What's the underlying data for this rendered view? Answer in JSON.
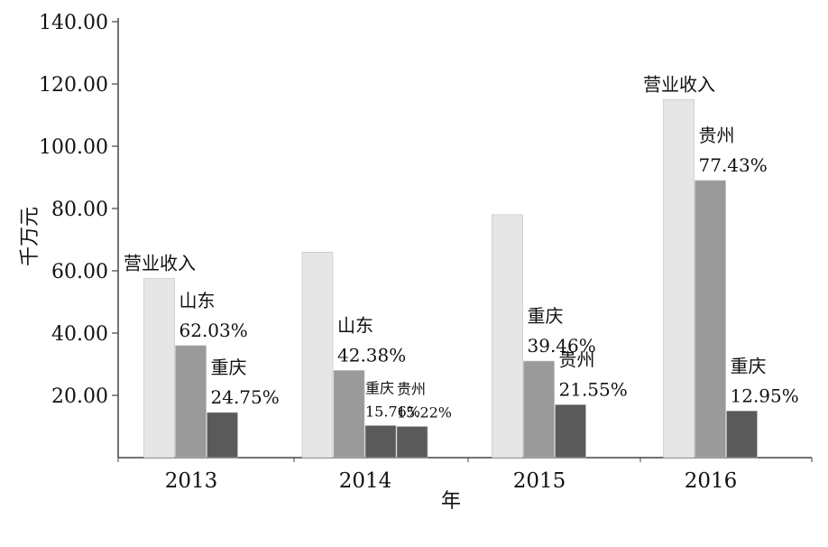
{
  "chart_data": {
    "type": "bar",
    "xlabel": "年",
    "ylabel": "千万元",
    "ylim": [
      0,
      140
    ],
    "yticks": [
      "20.00",
      "40.00",
      "60.00",
      "80.00",
      "100.00",
      "120.00",
      "140.00"
    ],
    "categories": [
      "2013",
      "2014",
      "2015",
      "2016"
    ],
    "bars": [
      [
        {
          "value": 57.5,
          "color": "#e6e6e6",
          "labels": [
            "营业收入"
          ]
        },
        {
          "value": 36.0,
          "color": "#9a9a9a",
          "labels": [
            "山东",
            "62.03%"
          ]
        },
        {
          "value": 14.5,
          "color": "#5a5a5a",
          "labels": [
            "重庆",
            "24.75%"
          ]
        }
      ],
      [
        {
          "value": 66.0,
          "color": "#e6e6e6",
          "labels": []
        },
        {
          "value": 28.0,
          "color": "#9a9a9a",
          "labels": [
            "山东",
            "42.38%"
          ]
        },
        {
          "value": 10.3,
          "color": "#5a5a5a",
          "labels": [
            "重庆",
            "15.76%"
          ]
        },
        {
          "value": 10.0,
          "color": "#5a5a5a",
          "labels": [
            "贵州",
            "15.22%"
          ]
        }
      ],
      [
        {
          "value": 78.0,
          "color": "#e6e6e6",
          "labels": []
        },
        {
          "value": 31.0,
          "color": "#9a9a9a",
          "labels": [
            "重庆",
            "39.46%"
          ]
        },
        {
          "value": 17.0,
          "color": "#5a5a5a",
          "labels": [
            "贵州",
            "21.55%"
          ]
        }
      ],
      [
        {
          "value": 115.0,
          "color": "#e6e6e6",
          "labels": [
            "营业收入"
          ]
        },
        {
          "value": 89.0,
          "color": "#9a9a9a",
          "labels": [
            "贵州",
            "77.43%"
          ]
        },
        {
          "value": 15.0,
          "color": "#5a5a5a",
          "labels": [
            "重庆",
            "12.95%"
          ]
        }
      ]
    ]
  }
}
